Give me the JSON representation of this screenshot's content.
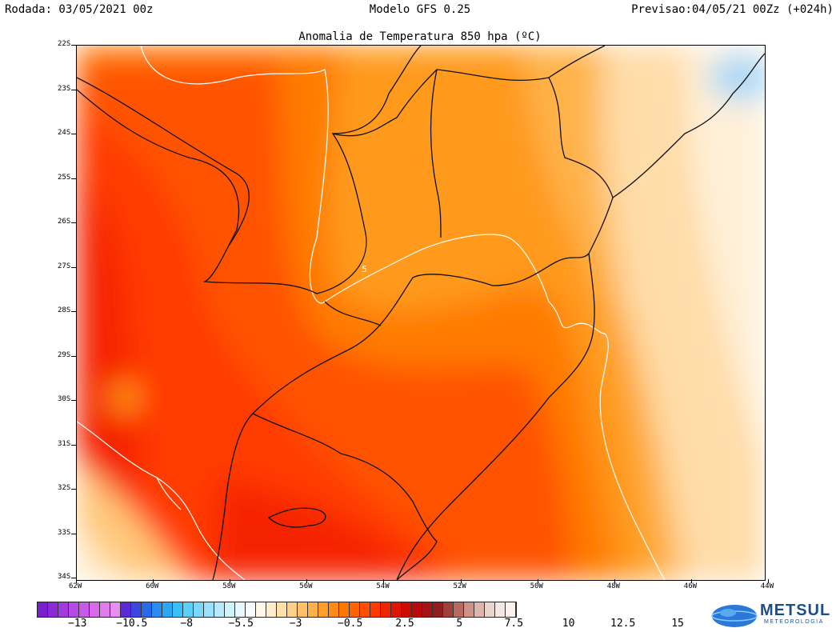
{
  "header": {
    "run": "Rodada: 03/05/2021 00z",
    "model": "Modelo GFS 0.25",
    "forecast": "Previsao:04/05/21 00Zz (+024h)"
  },
  "map": {
    "title": "Anomalia de Temperatura 850 hpa (ºC)",
    "contour_label": "5",
    "lat_labels": [
      "22S",
      "23S",
      "24S",
      "25S",
      "26S",
      "27S",
      "28S",
      "29S",
      "30S",
      "31S",
      "32S",
      "33S",
      "34S"
    ],
    "lon_labels": [
      "62W",
      "60W",
      "58W",
      "56W",
      "54W",
      "52W",
      "50W",
      "48W",
      "46W",
      "44W"
    ],
    "palette_warm": {
      "c15": "#f50000",
      "c12": "#ff2a00",
      "c10": "#ff5200",
      "c8": "#ff7a00",
      "c6": "#ff9a1a",
      "c4": "#ffb24a",
      "c3": "#ffc87a",
      "c2": "#ffdca8",
      "c1": "#fff0d8",
      "cold": "#a8d8f8"
    }
  },
  "legend": {
    "labels": [
      "−13",
      "−10.5",
      "−8",
      "−5.5",
      "−3",
      "−0.5",
      "2.5",
      "5",
      "7.5",
      "10",
      "12.5",
      "15"
    ],
    "colors": [
      "#7a1fd0",
      "#8c2ad8",
      "#a23adf",
      "#b64ae4",
      "#c85ae8",
      "#d66ae8",
      "#e07cec",
      "#e88ef0",
      "#5a2ad8",
      "#3a48e0",
      "#2a6ae8",
      "#2a8cf0",
      "#2aa8f4",
      "#3ac0f8",
      "#5ad0fa",
      "#7ad8fa",
      "#9ae2fb",
      "#b6eafc",
      "#d0f2fd",
      "#e6f8fe",
      "#f8fcff",
      "#fff8ea",
      "#ffecca",
      "#ffe0a8",
      "#ffd088",
      "#ffc068",
      "#ffb048",
      "#ff9e2a",
      "#ff8a14",
      "#ff7600",
      "#ff6200",
      "#ff4e00",
      "#ff3a00",
      "#f02400",
      "#e01400",
      "#cc0a00",
      "#b80a0a",
      "#a41414",
      "#902020",
      "#a0403a",
      "#b86a60",
      "#cc9288",
      "#dcb6ac",
      "#ead4cc",
      "#f4e6e0",
      "#fbf2ee"
    ],
    "brand": "METSUL",
    "brand_sub": "METEOROLOGIA"
  }
}
